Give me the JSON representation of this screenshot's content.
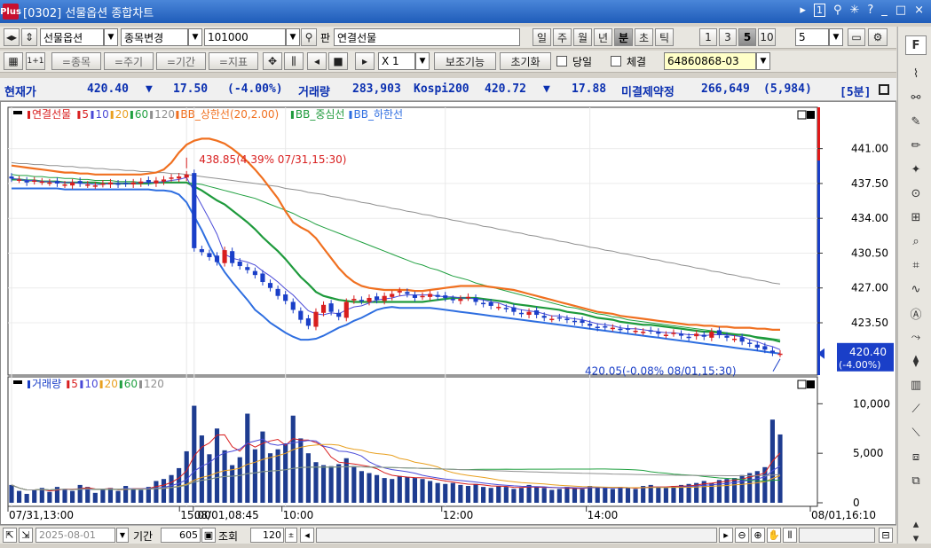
{
  "window": {
    "logo": "Plus",
    "title": "[0302] 선물옵션 종합차트",
    "controls": [
      "▸",
      "1",
      "⚲",
      "✳",
      "?",
      "_",
      "□",
      "×"
    ]
  },
  "toolbar1": {
    "nav_left": "◂▸",
    "nav_updown": "⇕",
    "market": "선물옵션",
    "change_label": "종목변경",
    "code": "101000",
    "search_icon": "search-icon",
    "pan_label": "판",
    "product": "연결선물",
    "periods": [
      "일",
      "주",
      "월",
      "년",
      "분",
      "초",
      "틱"
    ],
    "active_period": "분",
    "intervals": [
      "1",
      "3",
      "5",
      "10"
    ],
    "active_interval": "5",
    "interval_value": "5"
  },
  "toolbar2": {
    "items": [
      "=종목",
      "=주기",
      "=기간",
      "=지표"
    ],
    "multiplier": "X 1",
    "aux_label": "보조기능",
    "reset_label": "초기화",
    "today_label": "당일",
    "trade_label": "체결",
    "account": "64860868-03"
  },
  "ticker": {
    "cur_label": "현재가",
    "cur_value": "420.40",
    "change_arrow": "▼",
    "change": "17.50",
    "change_pct": "(-4.00%)",
    "vol_label": "거래량",
    "vol_value": "283,903",
    "kospi_label": "Kospi200",
    "kospi_value": "420.72",
    "kospi_arrow": "▼",
    "kospi_change": "17.88",
    "oi_label": "미결제약정",
    "oi_value": "266,649",
    "oi_change": "(5,984)",
    "period_tag": "[5분]"
  },
  "chart_data": [
    {
      "type": "candlestick",
      "legend": [
        "연결선물",
        "5",
        "10",
        "20",
        "60",
        "120",
        "BB_상한선(20,2.00)",
        "BB_중심선",
        "BB_하한선"
      ],
      "y_ticks": [
        441.0,
        437.5,
        434.0,
        430.5,
        427.0,
        423.5
      ],
      "ylim": [
        418.6,
        444.8
      ],
      "current_price": "420.40",
      "current_pct": "(-4.00%)",
      "high_annotation": "438.85(4.39% 07/31,15:30)",
      "low_annotation": "420.05(-0.08% 08/01,15:30)",
      "close": [
        438.0,
        437.9,
        437.6,
        437.8,
        437.7,
        437.6,
        437.5,
        437.4,
        437.6,
        437.5,
        437.4,
        437.3,
        437.5,
        437.6,
        437.4,
        437.5,
        437.6,
        437.7,
        437.6,
        437.8,
        437.9,
        438.1,
        438.2,
        438.4,
        431.0,
        430.6,
        430.1,
        429.6,
        430.8,
        429.5,
        429.2,
        428.8,
        428.3,
        427.6,
        427.0,
        426.2,
        425.7,
        424.8,
        423.8,
        423.2,
        424.6,
        425.3,
        424.6,
        424.1,
        425.6,
        425.9,
        425.7,
        426.0,
        425.8,
        426.2,
        426.4,
        426.7,
        426.4,
        426.0,
        426.2,
        426.4,
        426.1,
        426.0,
        425.8,
        425.9,
        426.1,
        425.6,
        425.4,
        425.2,
        425.1,
        424.9,
        424.6,
        424.4,
        424.6,
        424.3,
        424.0,
        423.9,
        424.0,
        423.8,
        423.6,
        423.5,
        423.2,
        423.0,
        423.1,
        423.0,
        422.8,
        422.8,
        422.7,
        422.6,
        422.7,
        422.4,
        422.3,
        422.5,
        422.2,
        422.0,
        422.4,
        422.1,
        422.6,
        422.3,
        422.0,
        421.9,
        421.6,
        421.4,
        421.0,
        420.8,
        420.5,
        420.4
      ],
      "ma5": [
        438.0,
        437.9,
        437.8,
        437.8,
        437.7,
        437.7,
        437.6,
        437.6,
        437.6,
        437.5,
        437.5,
        437.4,
        437.4,
        437.5,
        437.5,
        437.5,
        437.5,
        437.6,
        437.6,
        437.6,
        437.7,
        437.8,
        437.9,
        438.1,
        436.7,
        435.3,
        433.9,
        432.4,
        430.4,
        430.0,
        429.8,
        429.6,
        429.3,
        428.7,
        428.2,
        427.6,
        426.9,
        426.3,
        425.5,
        424.7,
        424.4,
        424.3,
        424.5,
        424.4,
        424.8,
        425.1,
        425.2,
        425.5,
        425.8,
        425.9,
        426.0,
        426.2,
        426.3,
        426.3,
        426.3,
        426.3,
        426.2,
        426.1,
        426.1,
        426.0,
        426.0,
        425.9,
        425.8,
        425.6,
        425.5,
        425.2,
        425.0,
        424.8,
        424.7,
        424.6,
        424.4,
        424.2,
        424.2,
        424.0,
        423.9,
        423.8,
        423.6,
        423.4,
        423.3,
        423.2,
        423.0,
        422.9,
        422.9,
        422.8,
        422.7,
        422.6,
        422.5,
        422.5,
        422.4,
        422.3,
        422.3,
        422.2,
        422.3,
        422.3,
        422.3,
        422.2,
        422.1,
        421.8,
        421.6,
        421.3,
        421.1,
        420.8
      ],
      "ma20": [
        437.9,
        437.9,
        437.8,
        437.8,
        437.7,
        437.7,
        437.7,
        437.6,
        437.6,
        437.6,
        437.6,
        437.6,
        437.5,
        437.5,
        437.5,
        437.5,
        437.5,
        437.5,
        437.5,
        437.6,
        437.6,
        437.6,
        437.6,
        437.6,
        437.2,
        436.8,
        436.3,
        435.8,
        435.4,
        434.8,
        434.2,
        433.6,
        432.9,
        432.1,
        431.4,
        430.7,
        429.9,
        429.0,
        428.1,
        427.4,
        426.6,
        426.2,
        426.0,
        425.8,
        425.7,
        425.6,
        425.6,
        425.6,
        425.6,
        425.6,
        425.6,
        425.6,
        425.6,
        425.6,
        425.6,
        425.7,
        425.8,
        425.9,
        426.0,
        426.0,
        426.0,
        426.0,
        425.9,
        425.8,
        425.7,
        425.6,
        425.4,
        425.3,
        425.2,
        425.1,
        425.0,
        424.9,
        424.8,
        424.6,
        424.5,
        424.4,
        424.2,
        424.0,
        423.9,
        423.8,
        423.6,
        423.5,
        423.4,
        423.3,
        423.3,
        423.2,
        423.1,
        423.0,
        422.9,
        422.8,
        422.7,
        422.6,
        422.6,
        422.5,
        422.4,
        422.3,
        422.3,
        422.2,
        422.0,
        421.9,
        421.8,
        421.6
      ],
      "ma60": [
        438.4,
        438.3,
        438.3,
        438.2,
        438.2,
        438.1,
        438.1,
        438.0,
        438.0,
        437.9,
        437.9,
        437.8,
        437.8,
        437.8,
        437.7,
        437.7,
        437.7,
        437.6,
        437.6,
        437.6,
        437.6,
        437.6,
        437.6,
        437.6,
        437.5,
        437.4,
        437.2,
        437.0,
        436.8,
        436.6,
        436.4,
        436.2,
        436.0,
        435.7,
        435.4,
        435.1,
        434.8,
        434.5,
        434.1,
        433.8,
        433.4,
        433.1,
        432.8,
        432.5,
        432.2,
        431.9,
        431.6,
        431.3,
        431.0,
        430.7,
        430.4,
        430.1,
        429.8,
        429.5,
        429.3,
        429.0,
        428.8,
        428.5,
        428.2,
        428.0,
        427.8,
        427.5,
        427.3,
        427.1,
        426.9,
        426.7,
        426.5,
        426.3,
        426.1,
        425.9,
        425.7,
        425.5,
        425.3,
        425.1,
        425.0,
        424.8,
        424.6,
        424.4,
        424.3,
        424.1,
        424.0,
        423.8,
        423.7,
        423.6,
        423.5,
        423.4,
        423.3,
        423.2,
        423.1,
        423.0,
        422.9,
        422.8,
        422.7,
        422.6,
        422.5,
        422.4,
        422.3,
        422.2,
        422.1,
        422.0,
        421.9,
        421.8
      ],
      "ma120": [
        439.6,
        439.5,
        439.5,
        439.4,
        439.4,
        439.3,
        439.3,
        439.2,
        439.2,
        439.1,
        439.1,
        439.0,
        439.0,
        438.9,
        438.9,
        438.8,
        438.8,
        438.7,
        438.7,
        438.6,
        438.6,
        438.5,
        438.5,
        438.4,
        438.3,
        438.2,
        438.1,
        438.0,
        437.9,
        437.8,
        437.7,
        437.6,
        437.5,
        437.4,
        437.3,
        437.2,
        437.0,
        436.9,
        436.8,
        436.6,
        436.5,
        436.4,
        436.2,
        436.1,
        435.9,
        435.8,
        435.6,
        435.5,
        435.3,
        435.2,
        435.0,
        434.9,
        434.7,
        434.6,
        434.4,
        434.3,
        434.1,
        434.0,
        433.8,
        433.7,
        433.5,
        433.4,
        433.2,
        433.1,
        432.9,
        432.8,
        432.6,
        432.5,
        432.3,
        432.2,
        432.0,
        431.9,
        431.7,
        431.6,
        431.4,
        431.3,
        431.1,
        431.0,
        430.8,
        430.7,
        430.5,
        430.4,
        430.2,
        430.1,
        429.9,
        429.8,
        429.6,
        429.5,
        429.3,
        429.2,
        429.0,
        428.9,
        428.7,
        428.6,
        428.4,
        428.3,
        428.1,
        428.0,
        427.8,
        427.7,
        427.5,
        427.4
      ],
      "bb_upper": [
        439.3,
        439.2,
        439.1,
        439.0,
        438.9,
        438.8,
        438.7,
        438.6,
        438.6,
        438.5,
        438.5,
        438.4,
        438.4,
        438.4,
        438.4,
        438.4,
        438.4,
        438.4,
        438.5,
        438.6,
        438.9,
        439.6,
        440.6,
        441.4,
        441.8,
        442.0,
        442.0,
        441.8,
        441.5,
        441.0,
        440.4,
        439.7,
        438.9,
        438.0,
        437.0,
        436.0,
        434.7,
        433.6,
        433.1,
        432.7,
        432.0,
        431.0,
        430.0,
        429.0,
        428.2,
        427.6,
        427.2,
        427.0,
        426.9,
        426.8,
        426.8,
        426.8,
        426.8,
        426.7,
        426.7,
        426.8,
        426.9,
        427.0,
        427.1,
        427.2,
        427.2,
        427.2,
        427.2,
        427.1,
        427.0,
        426.9,
        426.8,
        426.6,
        426.4,
        426.2,
        426.0,
        425.8,
        425.6,
        425.4,
        425.2,
        425.0,
        424.8,
        424.6,
        424.5,
        424.4,
        424.2,
        424.1,
        424.0,
        423.9,
        423.8,
        423.7,
        423.6,
        423.5,
        423.4,
        423.3,
        423.3,
        423.2,
        423.2,
        423.1,
        423.1,
        423.0,
        423.0,
        423.0,
        422.9,
        422.9,
        422.8,
        422.8
      ],
      "bb_lower": [
        437.0,
        437.0,
        437.0,
        437.0,
        437.0,
        437.0,
        437.0,
        436.9,
        436.9,
        436.9,
        436.9,
        436.9,
        436.9,
        436.9,
        436.9,
        436.9,
        436.9,
        436.9,
        436.9,
        436.8,
        436.8,
        436.7,
        436.4,
        435.6,
        434.2,
        432.8,
        431.2,
        429.8,
        428.6,
        427.6,
        426.7,
        425.8,
        424.8,
        424.2,
        423.5,
        423.0,
        422.5,
        422.1,
        421.8,
        421.8,
        421.9,
        422.2,
        422.6,
        423.0,
        423.3,
        423.7,
        424.0,
        424.4,
        424.8,
        425.0,
        425.1,
        425.0,
        425.0,
        425.0,
        425.0,
        425.0,
        424.9,
        424.8,
        424.7,
        424.6,
        424.5,
        424.4,
        424.3,
        424.2,
        424.1,
        424.0,
        423.9,
        423.8,
        423.7,
        423.6,
        423.5,
        423.4,
        423.3,
        423.2,
        423.1,
        423.0,
        422.9,
        422.8,
        422.7,
        422.6,
        422.5,
        422.4,
        422.3,
        422.2,
        422.1,
        422.0,
        421.9,
        421.8,
        421.7,
        421.6,
        421.5,
        421.4,
        421.3,
        421.2,
        421.1,
        421.0,
        420.9,
        420.8,
        420.7,
        420.6,
        420.5,
        420.4
      ]
    },
    {
      "type": "bar",
      "legend": [
        "거래량",
        "5",
        "10",
        "20",
        "60",
        "120"
      ],
      "y_ticks": [
        "10,000",
        "5,000",
        "0"
      ],
      "ylim": [
        0,
        12000
      ],
      "values": [
        1800,
        1200,
        900,
        1300,
        1500,
        1100,
        1600,
        1400,
        1200,
        1800,
        1600,
        1000,
        1300,
        1500,
        1200,
        1700,
        1400,
        1300,
        1600,
        2200,
        2400,
        2800,
        3500,
        5200,
        9800,
        6800,
        4900,
        7500,
        5300,
        3800,
        4600,
        9000,
        5400,
        7200,
        5000,
        5400,
        6000,
        8800,
        6500,
        5000,
        4100,
        3800,
        3700,
        3900,
        4500,
        3700,
        3200,
        3000,
        2800,
        2500,
        2400,
        2700,
        2600,
        2500,
        2400,
        2200,
        2000,
        1900,
        2000,
        1800,
        1700,
        1900,
        1600,
        1500,
        1700,
        1600,
        1400,
        1500,
        1800,
        1600,
        1500,
        1300,
        1400,
        1600,
        1500,
        1400,
        1700,
        1600,
        1500,
        1400,
        1600,
        1500,
        1400,
        1700,
        1800,
        1600,
        1500,
        1700,
        1800,
        1900,
        2000,
        2200,
        2000,
        2300,
        2400,
        2500,
        2800,
        3000,
        3200,
        3600,
        8400,
        6900
      ],
      "x_ticks": [
        "07/31,13:00",
        "15:00",
        "08/01,08:45",
        "10:00",
        "12:00",
        "14:00",
        "08/01,16:10"
      ]
    }
  ],
  "statusbar": {
    "date": "2025-08-01",
    "period_label": "기간",
    "period_value": "605",
    "query_label": "조회",
    "count_value": "120"
  },
  "colors": {
    "up": "#d81e1e",
    "down": "#1a3fc8",
    "ma5": "#d81e1e",
    "ma10": "#4a4ad8",
    "ma20": "#e8a020",
    "ma60": "#20a040",
    "ma120": "#909090",
    "bb_upper": "#f07020",
    "bb_mid": "#1e9a3c",
    "bb_lower": "#2e6ee0"
  },
  "sidebar": {
    "top_label": "F",
    "icons": [
      "chart-icon",
      "ruler-icon",
      "price-icon",
      "volume-icon",
      "scale-icon",
      "zoom-icon",
      "crosshair-icon",
      "list-zoom-icon",
      "list-table-icon",
      "wave-icon",
      "auto-icon",
      "curve-icon",
      "candle-icon",
      "bar-icon",
      "trend-icon",
      "line-icon",
      "box-icon",
      "screen-icon"
    ]
  }
}
